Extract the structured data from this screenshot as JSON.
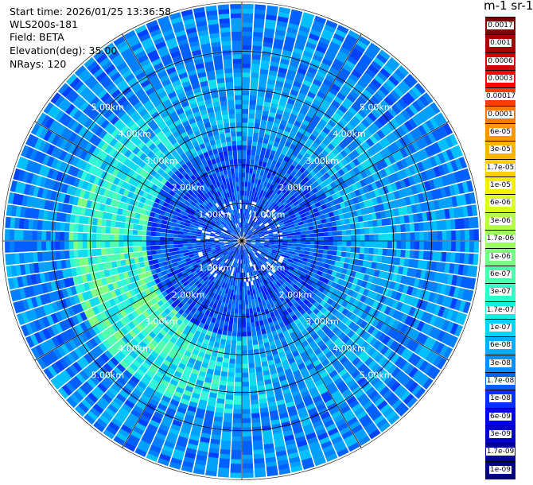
{
  "header": {
    "start_time": "Start time: 2026/01/25 13:36:58",
    "instrument": "WLS200s-181",
    "field": "Field: BETA",
    "elevation": "Elevation(deg): 35.00",
    "nrays": "NRays: 120"
  },
  "colorbar": {
    "title": "m-1 sr-1",
    "labels": [
      "0.0017",
      "0.001",
      "0.0006",
      "0.0003",
      "0.00017",
      "0.0001",
      "6e-05",
      "3e-05",
      "1.7e-05",
      "1e-05",
      "6e-06",
      "3e-06",
      "1.7e-06",
      "1e-06",
      "6e-07",
      "3e-07",
      "1.7e-07",
      "1e-07",
      "6e-08",
      "3e-08",
      "1.7e-08",
      "1e-08",
      "6e-09",
      "3e-09",
      "1.7e-09",
      "1e-09"
    ],
    "colors": [
      "#7f0000",
      "#a80000",
      "#d40000",
      "#ff0000",
      "#ff3c00",
      "#ff7800",
      "#ff9800",
      "#ffb400",
      "#ffd000",
      "#f4ee00",
      "#d8ff1e",
      "#b4ff43",
      "#98ff5f",
      "#74ff83",
      "#4dffaa",
      "#2effc9",
      "#15f0e2",
      "#00d4ff",
      "#00b0ff",
      "#0090ff",
      "#0060ff",
      "#0030ff",
      "#0000f0",
      "#0000c8",
      "#00009c",
      "#000080"
    ]
  },
  "chart_data": {
    "type": "heatmap",
    "projection": "polar-ppi",
    "field": "BETA",
    "units": "m-1 sr-1",
    "elevation_deg": 35.0,
    "nrays": 120,
    "range_rings_km": [
      1,
      2,
      3,
      4,
      5
    ],
    "ring_labels": [
      "1.00km",
      "2.00km",
      "3.00km",
      "4.00km",
      "5.00km"
    ],
    "max_range_km": 6.3,
    "spokes_deg": [
      0,
      30,
      60,
      90,
      120,
      150,
      180,
      210,
      240,
      270,
      300,
      330
    ],
    "value_range": [
      1e-09,
      0.0017
    ],
    "scale": "log",
    "dominant_values": {
      "0-2.5km": "1e-08 to 3e-08",
      "2.5-4.5km west/south-west": "1e-07 to 3e-07",
      "4.5-6km": "3e-08 to 1e-07"
    }
  }
}
